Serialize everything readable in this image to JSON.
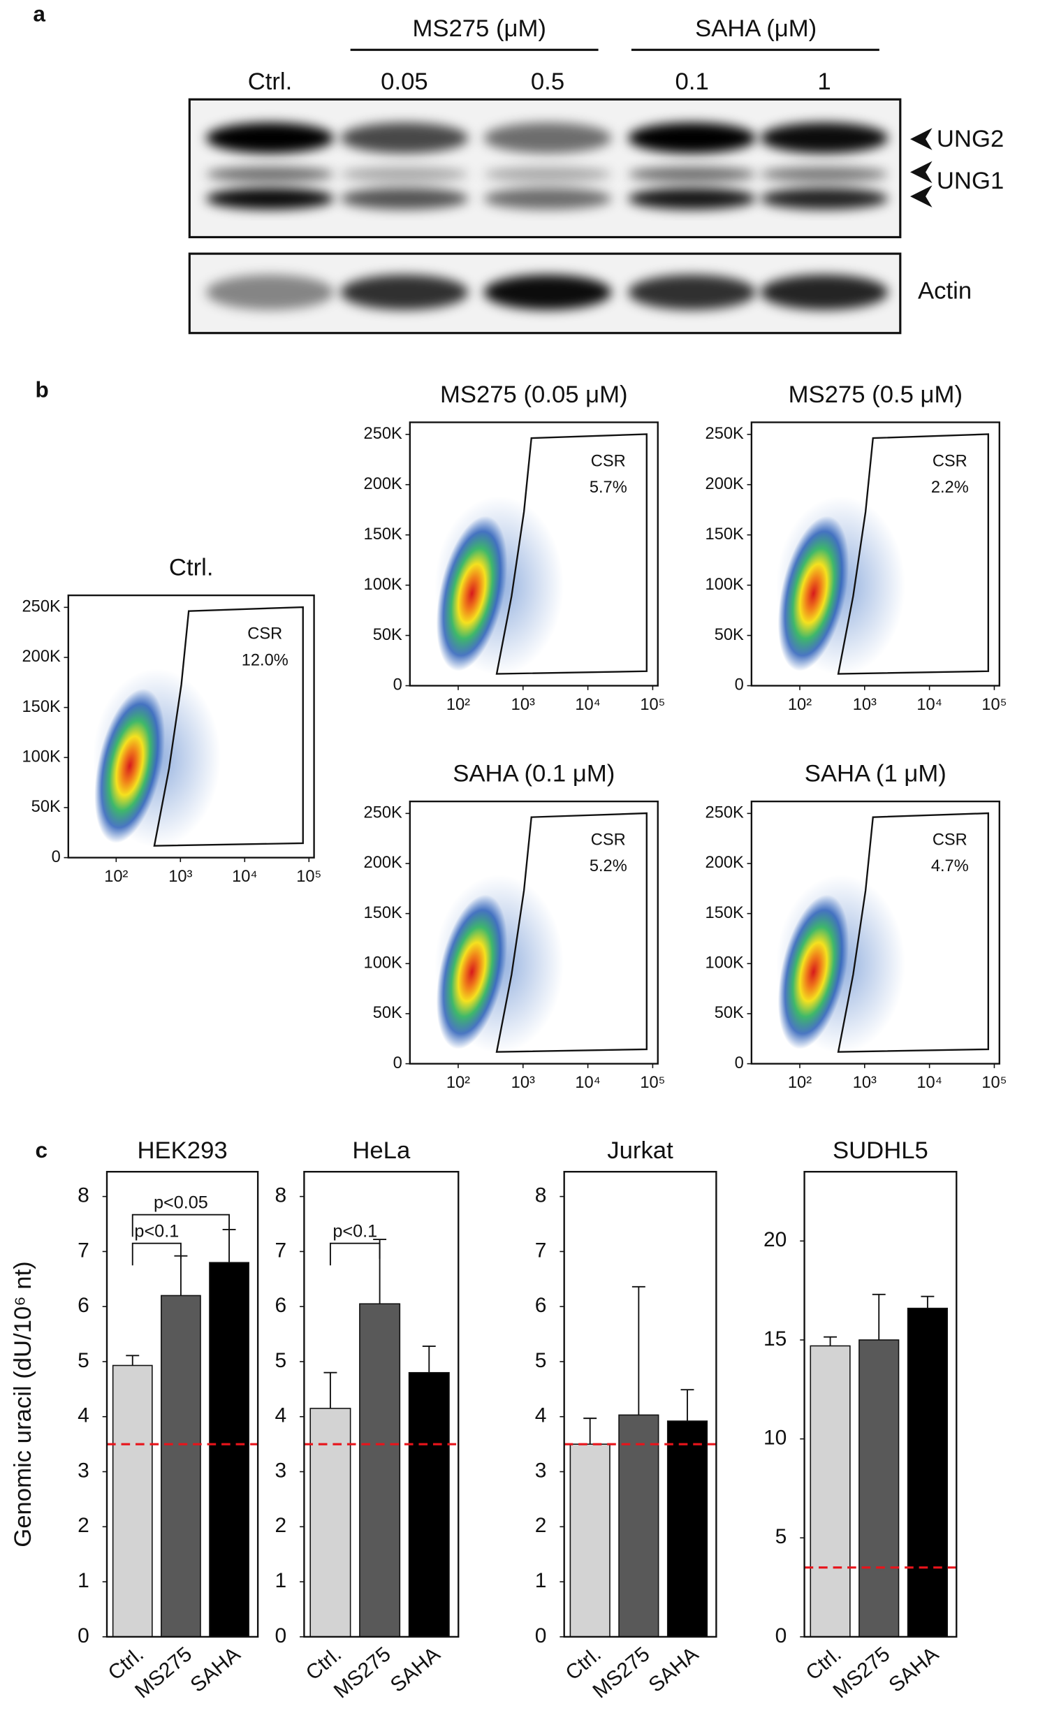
{
  "panel_labels": [
    "a",
    "b",
    "c"
  ],
  "blot": {
    "groups": [
      "MS275 (μM)",
      "SAHA (μM)"
    ],
    "lanes": [
      "Ctrl.",
      "0.05",
      "0.5",
      "0.1",
      "1"
    ],
    "bands": [
      "UNG2",
      "UNG1"
    ],
    "loading": "Actin"
  },
  "chart_data": [
    {
      "type": "density",
      "title": "Ctrl.",
      "gate": "CSR",
      "gate_percent": "12.0%",
      "log_x": true,
      "xlim": [
        18,
        120000
      ],
      "xticks": [
        {
          "value": 100,
          "label": "10²"
        },
        {
          "value": 1000,
          "label": "10³"
        },
        {
          "value": 10000,
          "label": "10⁴"
        },
        {
          "value": 100000,
          "label": "10⁵"
        }
      ],
      "ylim": [
        0,
        262000
      ],
      "yticks": [
        0,
        {
          "value": 50000,
          "label": "50K"
        },
        {
          "value": 100000,
          "label": "100K"
        },
        {
          "value": 150000,
          "label": "150K"
        },
        {
          "value": 200000,
          "label": "200K"
        },
        {
          "value": 250000,
          "label": "250K"
        }
      ]
    },
    {
      "type": "density",
      "title": "MS275 (0.05 μM)",
      "gate": "CSR",
      "gate_percent": "5.7%",
      "log_x": true,
      "xlim": [
        18,
        120000
      ],
      "xticks": [
        {
          "value": 100,
          "label": "10²"
        },
        {
          "value": 1000,
          "label": "10³"
        },
        {
          "value": 10000,
          "label": "10⁴"
        },
        {
          "value": 100000,
          "label": "10⁵"
        }
      ],
      "ylim": [
        0,
        262000
      ],
      "yticks": [
        0,
        {
          "value": 50000,
          "label": "50K"
        },
        {
          "value": 100000,
          "label": "100K"
        },
        {
          "value": 150000,
          "label": "150K"
        },
        {
          "value": 200000,
          "label": "200K"
        },
        {
          "value": 250000,
          "label": "250K"
        }
      ]
    },
    {
      "type": "density",
      "title": "MS275 (0.5 μM)",
      "gate": "CSR",
      "gate_percent": "2.2%",
      "log_x": true,
      "xlim": [
        18,
        120000
      ],
      "xticks": [
        {
          "value": 100,
          "label": "10²"
        },
        {
          "value": 1000,
          "label": "10³"
        },
        {
          "value": 10000,
          "label": "10⁴"
        },
        {
          "value": 100000,
          "label": "10⁵"
        }
      ],
      "ylim": [
        0,
        262000
      ],
      "yticks": [
        0,
        {
          "value": 50000,
          "label": "50K"
        },
        {
          "value": 100000,
          "label": "100K"
        },
        {
          "value": 150000,
          "label": "150K"
        },
        {
          "value": 200000,
          "label": "200K"
        },
        {
          "value": 250000,
          "label": "250K"
        }
      ]
    },
    {
      "type": "density",
      "title": "SAHA (0.1 μM)",
      "gate": "CSR",
      "gate_percent": "5.2%",
      "log_x": true,
      "xlim": [
        18,
        120000
      ],
      "xticks": [
        {
          "value": 100,
          "label": "10²"
        },
        {
          "value": 1000,
          "label": "10³"
        },
        {
          "value": 10000,
          "label": "10⁴"
        },
        {
          "value": 100000,
          "label": "10⁵"
        }
      ],
      "ylim": [
        0,
        262000
      ],
      "yticks": [
        0,
        {
          "value": 50000,
          "label": "50K"
        },
        {
          "value": 100000,
          "label": "100K"
        },
        {
          "value": 150000,
          "label": "150K"
        },
        {
          "value": 200000,
          "label": "200K"
        },
        {
          "value": 250000,
          "label": "250K"
        }
      ]
    },
    {
      "type": "density",
      "title": "SAHA (1 μM)",
      "gate": "CSR",
      "gate_percent": "4.7%",
      "log_x": true,
      "xlim": [
        18,
        120000
      ],
      "xticks": [
        {
          "value": 100,
          "label": "10²"
        },
        {
          "value": 1000,
          "label": "10³"
        },
        {
          "value": 10000,
          "label": "10⁴"
        },
        {
          "value": 100000,
          "label": "10⁵"
        }
      ],
      "ylim": [
        0,
        262000
      ],
      "yticks": [
        0,
        {
          "value": 50000,
          "label": "50K"
        },
        {
          "value": 100000,
          "label": "100K"
        },
        {
          "value": 150000,
          "label": "150K"
        },
        {
          "value": 200000,
          "label": "200K"
        },
        {
          "value": 250000,
          "label": "250K"
        }
      ]
    },
    {
      "type": "bar",
      "title": "HEK293",
      "y_label": "Genomic uracil (dU/10⁶ nt)",
      "categories": [
        "Ctrl.",
        "MS275",
        "SAHA"
      ],
      "colors": [
        "#d3d3d3",
        "#595959",
        "#000000"
      ],
      "values": [
        4.93,
        6.2,
        6.8
      ],
      "errors": [
        0.18,
        0.72,
        0.6
      ],
      "ylim": [
        0,
        8.45
      ],
      "yticks": [
        0,
        1,
        2,
        3,
        4,
        5,
        6,
        7,
        8
      ],
      "reference_line": {
        "value": 3.5,
        "color": "#e8141b",
        "style": "dashed"
      },
      "brackets": [
        {
          "label": "p<0.1",
          "between": [
            "Ctrl.",
            "MS275"
          ]
        },
        {
          "label": "p<0.05",
          "between": [
            "Ctrl.",
            "SAHA"
          ]
        }
      ]
    },
    {
      "type": "bar",
      "title": "HeLa",
      "categories": [
        "Ctrl.",
        "MS275",
        "SAHA"
      ],
      "colors": [
        "#d3d3d3",
        "#595959",
        "#000000"
      ],
      "values": [
        4.15,
        6.05,
        4.8
      ],
      "errors": [
        0.65,
        1.17,
        0.48
      ],
      "ylim": [
        0,
        8.45
      ],
      "yticks": [
        0,
        1,
        2,
        3,
        4,
        5,
        6,
        7,
        8
      ],
      "reference_line": {
        "value": 3.5,
        "color": "#e8141b",
        "style": "dashed"
      },
      "brackets": [
        {
          "label": "p<0.1",
          "between": [
            "Ctrl.",
            "MS275"
          ]
        }
      ]
    },
    {
      "type": "bar",
      "title": "Jurkat",
      "categories": [
        "Ctrl.",
        "MS275",
        "SAHA"
      ],
      "colors": [
        "#d3d3d3",
        "#595959",
        "#000000"
      ],
      "values": [
        3.5,
        4.03,
        3.92
      ],
      "errors": [
        0.47,
        2.33,
        0.57
      ],
      "ylim": [
        0,
        8.45
      ],
      "yticks": [
        0,
        1,
        2,
        3,
        4,
        5,
        6,
        7,
        8
      ],
      "reference_line": {
        "value": 3.5,
        "color": "#e8141b",
        "style": "dashed"
      }
    },
    {
      "type": "bar",
      "title": "SUDHL5",
      "categories": [
        "Ctrl.",
        "MS275",
        "SAHA"
      ],
      "colors": [
        "#d3d3d3",
        "#595959",
        "#000000"
      ],
      "values": [
        14.7,
        15.0,
        16.6
      ],
      "errors": [
        0.45,
        2.3,
        0.6
      ],
      "ylim": [
        0,
        23.5
      ],
      "yticks": [
        0,
        5,
        10,
        15,
        20
      ],
      "reference_line": {
        "value": 3.5,
        "color": "#e8141b",
        "style": "dashed"
      }
    }
  ]
}
